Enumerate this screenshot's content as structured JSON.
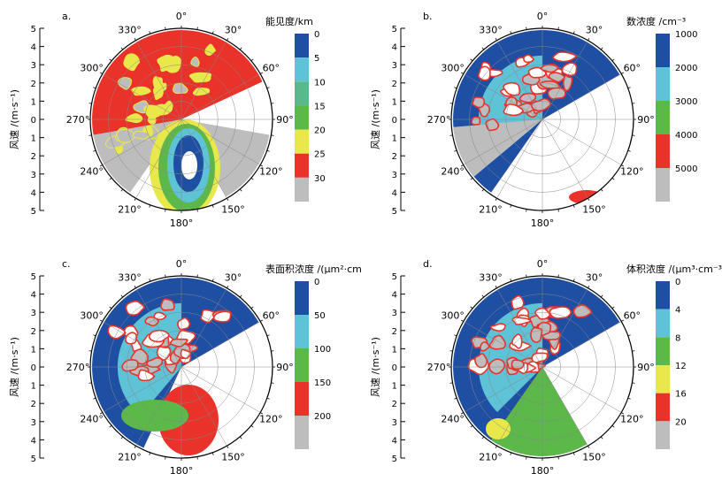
{
  "colors": {
    "blue": "#1f4fa3",
    "cyan": "#5ec3d6",
    "teal": "#5bb88c",
    "green": "#5cb848",
    "yellow": "#e8e84a",
    "red": "#e8322a",
    "gray": "#bdbdbd",
    "white": "#ffffff"
  },
  "chart_data": [
    {
      "type": "polar-contour",
      "panel_label": "a.",
      "title": "能见度/km",
      "ylabel": "风速 /(m·s⁻¹)",
      "radial_ticks": [
        "5",
        "4",
        "3",
        "2",
        "1",
        "0",
        "1",
        "2",
        "3",
        "4",
        "5"
      ],
      "angle_labels": [
        "0°",
        "30°",
        "60°",
        "90°",
        "120°",
        "150°",
        "180°",
        "210°",
        "240°",
        "270°",
        "300°",
        "330°"
      ],
      "legend_ticks": [
        "0",
        "5",
        "10",
        "15",
        "20",
        "25",
        "30"
      ],
      "legend_colors": [
        "#1f4fa3",
        "#5ec3d6",
        "#5bb88c",
        "#5cb848",
        "#e8e84a",
        "#e8322a",
        "#bdbdbd"
      ]
    },
    {
      "type": "polar-contour",
      "panel_label": "b.",
      "title": "数浓度 /cm⁻³",
      "ylabel": "风速 /(m·s⁻¹)",
      "radial_ticks": [
        "5",
        "4",
        "3",
        "2",
        "1",
        "0",
        "1",
        "2",
        "3",
        "4",
        "5"
      ],
      "angle_labels": [
        "0°",
        "30°",
        "60°",
        "90°",
        "120°",
        "150°",
        "180°",
        "210°",
        "240°",
        "270°",
        "300°",
        "330°"
      ],
      "legend_ticks": [
        "1000",
        "2000",
        "3000",
        "4000",
        "5000"
      ],
      "legend_colors": [
        "#1f4fa3",
        "#5ec3d6",
        "#5cb848",
        "#e8322a",
        "#bdbdbd"
      ]
    },
    {
      "type": "polar-contour",
      "panel_label": "c.",
      "title": "表面积浓度 /(μm²·cm⁻³)",
      "ylabel": "风速 /(m·s⁻¹)",
      "radial_ticks": [
        "5",
        "4",
        "3",
        "2",
        "1",
        "0",
        "1",
        "2",
        "3",
        "4",
        "5"
      ],
      "angle_labels": [
        "0°",
        "30°",
        "60°",
        "90°",
        "120°",
        "150°",
        "180°",
        "210°",
        "240°",
        "270°",
        "300°",
        "330°"
      ],
      "legend_ticks": [
        "0",
        "50",
        "100",
        "150",
        "200"
      ],
      "legend_colors": [
        "#1f4fa3",
        "#5ec3d6",
        "#5cb848",
        "#e8322a",
        "#bdbdbd"
      ]
    },
    {
      "type": "polar-contour",
      "panel_label": "d.",
      "title": "体积浓度 /(μm³·cm⁻³)",
      "ylabel": "风速 /(m·s⁻¹)",
      "radial_ticks": [
        "5",
        "4",
        "3",
        "2",
        "1",
        "0",
        "1",
        "2",
        "3",
        "4",
        "5"
      ],
      "angle_labels": [
        "0°",
        "30°",
        "60°",
        "90°",
        "120°",
        "150°",
        "180°",
        "210°",
        "240°",
        "270°",
        "300°",
        "330°"
      ],
      "legend_ticks": [
        "0",
        "4",
        "8",
        "12",
        "16",
        "20"
      ],
      "legend_colors": [
        "#1f4fa3",
        "#5ec3d6",
        "#5cb848",
        "#e8e84a",
        "#e8322a",
        "#bdbdbd"
      ]
    }
  ]
}
